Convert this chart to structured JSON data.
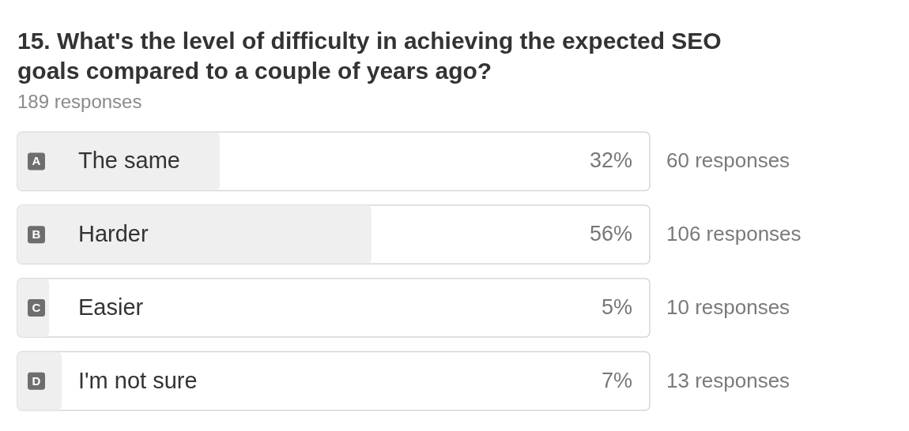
{
  "chart_data": {
    "type": "bar",
    "orientation": "horizontal",
    "title": "15. What's the level of difficulty in achieving the expected SEO goals compared to a couple of years ago?",
    "subtitle": "189 responses",
    "categories": [
      "A The same",
      "B Harder",
      "C Easier",
      "D I'm not sure"
    ],
    "values": [
      32,
      56,
      5,
      7
    ],
    "color": "#efefef",
    "value_labels": [
      "32%",
      "56%",
      "5%",
      "7%"
    ],
    "xlim": [
      0,
      100
    ],
    "tick_labels": false,
    "annotations": [
      "60 responses",
      "106 responses",
      "10 responses",
      "13 responses"
    ]
  }
}
